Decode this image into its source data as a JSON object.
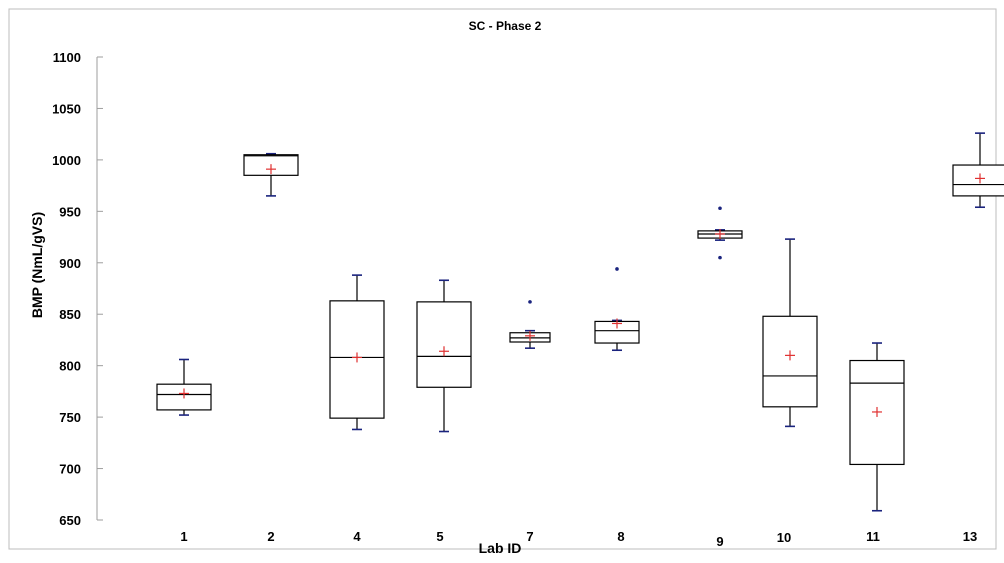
{
  "chart_data": {
    "type": "box",
    "title": "SC - Phase 2",
    "xlabel": "Lab ID",
    "ylabel": "BMP (NmL/gVS)",
    "ylim": [
      650,
      1100
    ],
    "yticks": [
      650,
      700,
      750,
      800,
      850,
      900,
      950,
      1000,
      1050,
      1100
    ],
    "grid": false,
    "colors": {
      "box": "#000000",
      "mean": "#e03030",
      "outlier": "#1a237e",
      "axis": "#9e9e9e"
    },
    "categories": [
      "1",
      "2",
      "4",
      "5",
      "7",
      "8",
      "9",
      "10",
      "11",
      "13"
    ],
    "boxes": [
      {
        "label": "1",
        "min": 752,
        "q1": 757,
        "median": 772,
        "q3": 782,
        "max": 806,
        "mean": 773,
        "outliers": []
      },
      {
        "label": "2",
        "min": 965,
        "q1": 985,
        "median": 1004,
        "q3": 1005,
        "max": 1006,
        "mean": 991,
        "outliers": []
      },
      {
        "label": "4",
        "min": 738,
        "q1": 749,
        "median": 808,
        "q3": 863,
        "max": 888,
        "mean": 808,
        "outliers": []
      },
      {
        "label": "5",
        "min": 736,
        "q1": 779,
        "median": 809,
        "q3": 862,
        "max": 883,
        "mean": 814,
        "outliers": []
      },
      {
        "label": "7",
        "min": 817,
        "q1": 823,
        "median": 827,
        "q3": 832,
        "max": 834,
        "mean": 829,
        "outliers": [
          862
        ]
      },
      {
        "label": "8",
        "min": 815,
        "q1": 822,
        "median": 834,
        "q3": 843,
        "max": 844,
        "mean": 841,
        "outliers": [
          894
        ]
      },
      {
        "label": "9",
        "min": 922,
        "q1": 924,
        "median": 928,
        "q3": 931,
        "max": 932,
        "mean": 928,
        "outliers": [
          953,
          905
        ]
      },
      {
        "label": "10",
        "min": 741,
        "q1": 760,
        "median": 790,
        "q3": 848,
        "max": 923,
        "mean": 810,
        "outliers": []
      },
      {
        "label": "11",
        "min": 659,
        "q1": 704,
        "median": 783,
        "q3": 805,
        "max": 822,
        "mean": 755,
        "outliers": []
      },
      {
        "label": "13",
        "min": 954,
        "q1": 965,
        "median": 976,
        "q3": 995,
        "max": 1026,
        "mean": 982,
        "outliers": []
      }
    ]
  }
}
